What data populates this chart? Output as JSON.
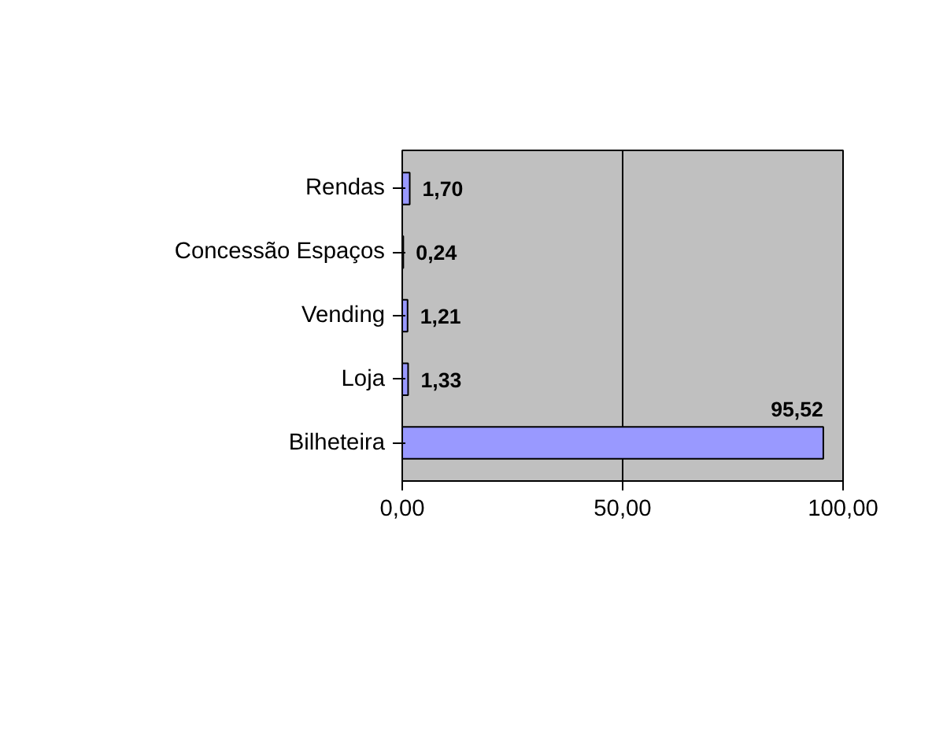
{
  "chart_data": {
    "type": "bar",
    "orientation": "horizontal",
    "categories": [
      "Rendas",
      "Concessão Espaços",
      "Vending",
      "Loja",
      "Bilheteira"
    ],
    "values": [
      1.7,
      0.24,
      1.21,
      1.33,
      95.52
    ],
    "value_labels": [
      "1,70",
      "0,24",
      "1,21",
      "1,33",
      "95,52"
    ],
    "color": "#9999ff",
    "xlim": [
      0,
      100
    ],
    "xticks": [
      {
        "value": 0,
        "label": "0,00"
      },
      {
        "value": 50,
        "label": "50,00"
      },
      {
        "value": 100,
        "label": "100,00"
      }
    ],
    "grid": "x"
  }
}
